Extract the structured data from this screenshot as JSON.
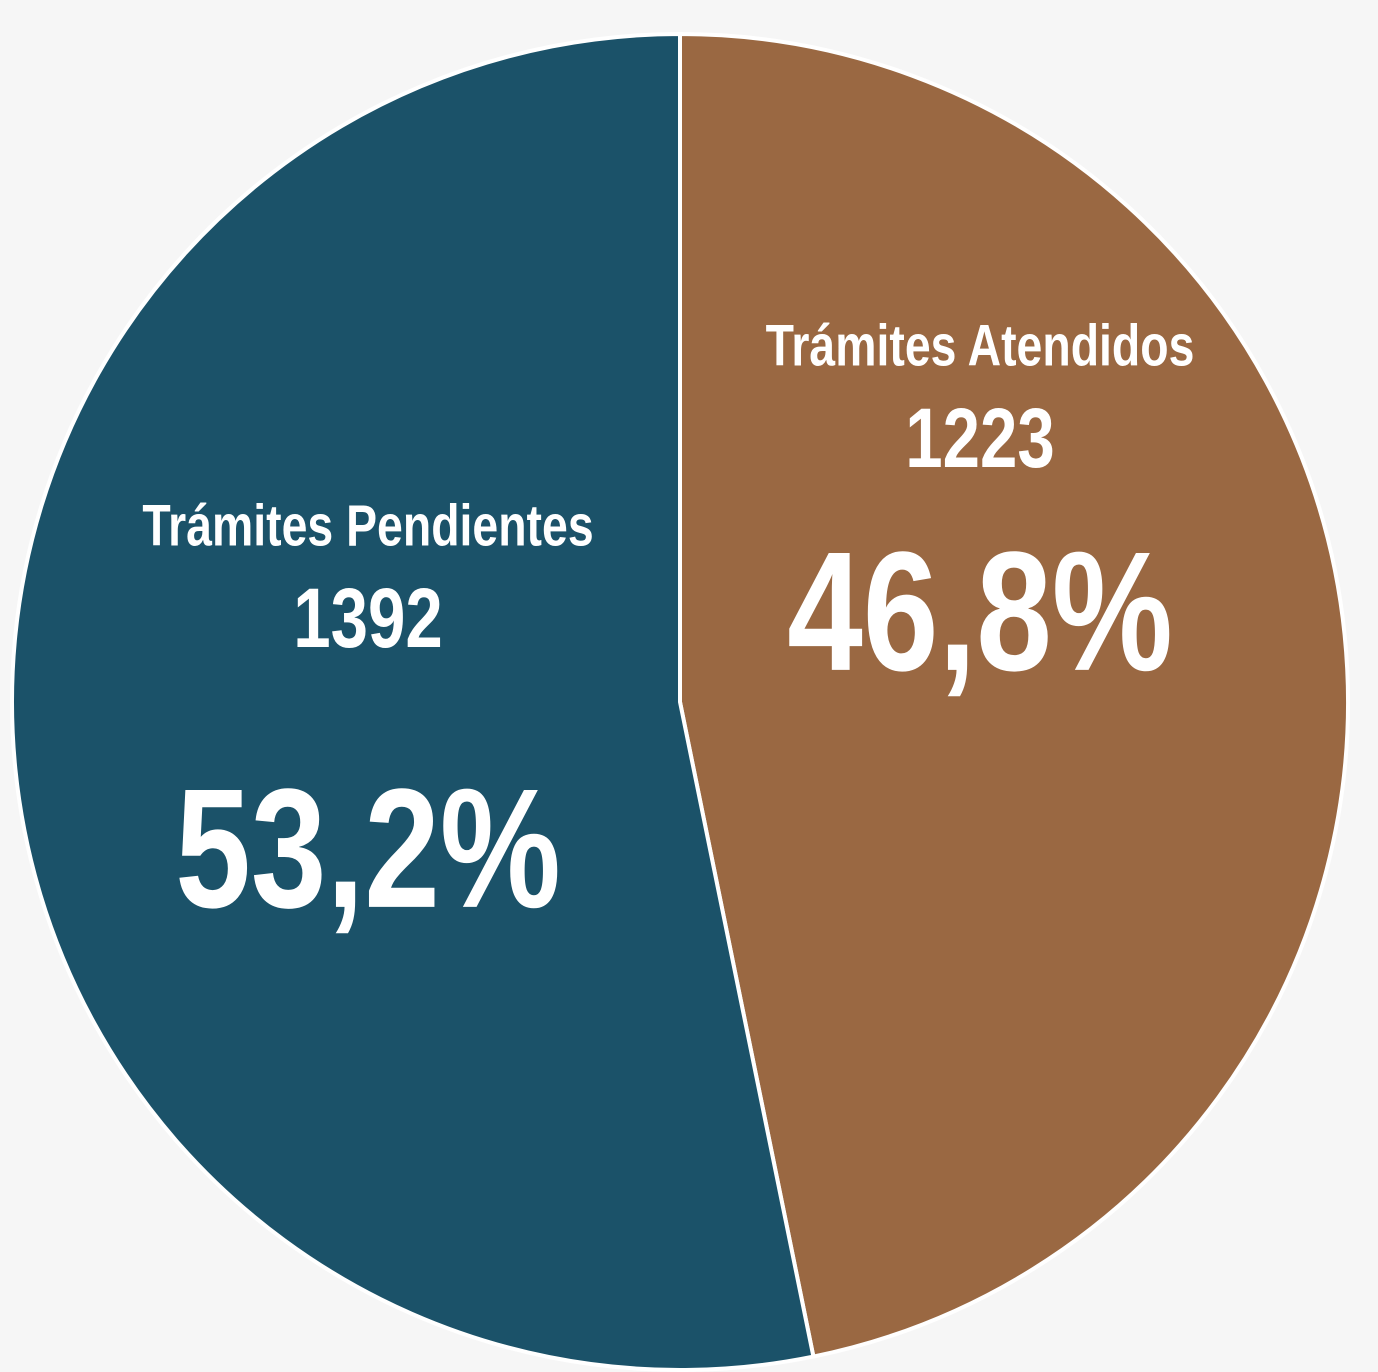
{
  "chart_data": {
    "type": "pie",
    "categories": [
      "Trámites Atendidos",
      "Trámites Pendientes"
    ],
    "counts": [
      1223,
      1392
    ],
    "values": [
      46.8,
      53.2
    ],
    "value_labels": [
      "46,8%",
      "53,2%"
    ],
    "colors": [
      "#9a6842",
      "#1b5269"
    ]
  }
}
